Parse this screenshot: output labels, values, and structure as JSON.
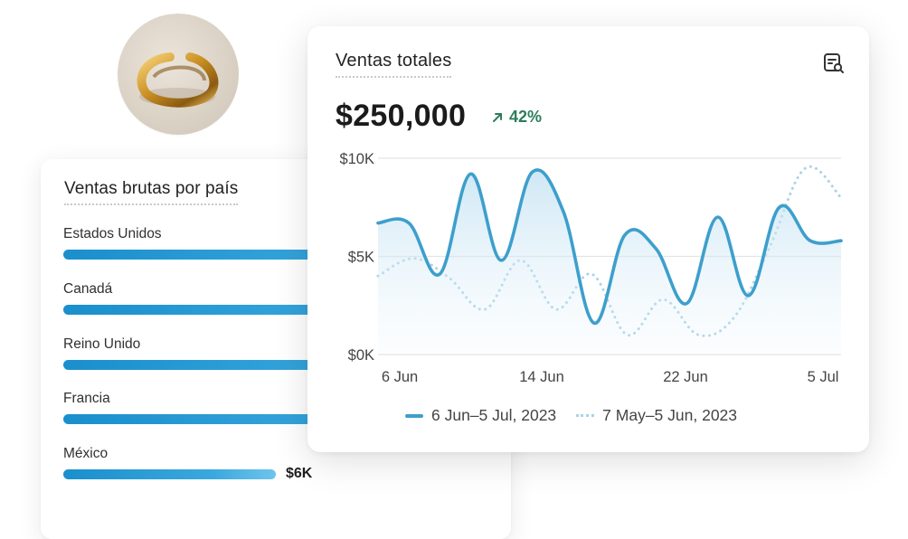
{
  "product": {
    "image_icon": "gold-ring-image"
  },
  "country_sales": {
    "title": "Ventas brutas por país",
    "items": [
      {
        "name": "Estados Unidos",
        "fraction": 1.0,
        "value_label": ""
      },
      {
        "name": "Canadá",
        "fraction": 1.0,
        "value_label": ""
      },
      {
        "name": "Reino Unido",
        "fraction": 1.0,
        "value_label": ""
      },
      {
        "name": "Francia",
        "fraction": 1.0,
        "value_label": ""
      },
      {
        "name": "México",
        "fraction": 0.49,
        "value_label": "$6K"
      }
    ],
    "bar_color": "#2a9ad5"
  },
  "total_sales": {
    "title": "Ventas totales",
    "amount": "$250,000",
    "change": "42%",
    "change_color": "#2e7d5b",
    "report_icon": "report-search-icon"
  },
  "chart_data": {
    "type": "line",
    "title": "Ventas totales",
    "xlabel": "",
    "ylabel": "",
    "x_tick_labels": [
      "6 Jun",
      "14 Jun",
      "22 Jun",
      "5 Jul"
    ],
    "y_tick_labels": [
      "$10K",
      "$5K",
      "$0K"
    ],
    "ylim": [
      0,
      10000
    ],
    "grid": true,
    "legend_position": "bottom",
    "series": [
      {
        "name": "6 Jun–5 Jul, 2023",
        "style": "solid",
        "color": "#3d9fcc",
        "fill": true,
        "values": [
          6700,
          6700,
          4100,
          9200,
          4800,
          9300,
          7300,
          1600,
          6100,
          5400,
          2600,
          7000,
          3000,
          7500,
          5800,
          5800
        ]
      },
      {
        "name": "7 May–5 Jun, 2023",
        "style": "dotted",
        "color": "#a9d3e6",
        "fill": false,
        "values": [
          4000,
          4900,
          3900,
          2300,
          4800,
          2300,
          4100,
          1000,
          2800,
          1000,
          1900,
          5500,
          9500,
          8000
        ]
      }
    ]
  }
}
